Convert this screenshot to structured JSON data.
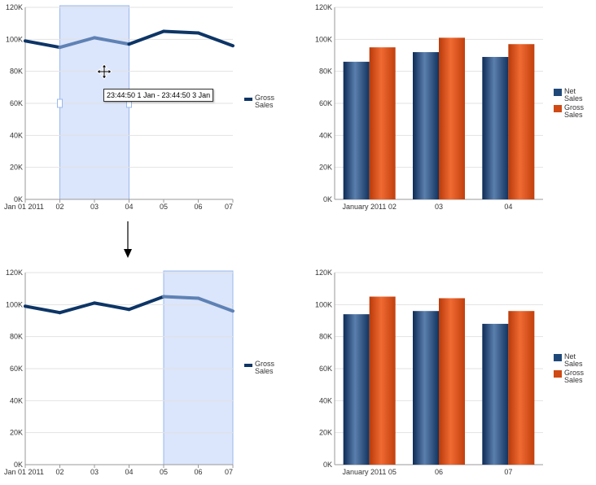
{
  "colors": {
    "line": "#0d3566",
    "line_selected": "#5f82b5",
    "net_sales": "#1f4878",
    "gross_sales": "#cf4a14",
    "selection_fill": "#dbe5fb",
    "selection_border": "#9ab8ef",
    "gridline": "#e2e2e2",
    "axis": "#9a9a9a"
  },
  "icons": {
    "move_cursor": "move-cursor-icon",
    "flow_arrow": "down-arrow-icon"
  },
  "before": {
    "line_chart": {
      "legend": "Gross Sales",
      "tooltip": "23:44:50 1 Jan - 23:44:50 3 Jan",
      "selection_range": [
        "Jan 01 2011",
        "04"
      ]
    },
    "bar_chart": {
      "legend_net": "Net Sales",
      "legend_gross": "Gross Sales"
    }
  },
  "after": {
    "line_chart": {
      "legend": "Gross Sales",
      "selection_range": [
        "05",
        "07"
      ]
    },
    "bar_chart": {
      "legend_net": "Net Sales",
      "legend_gross": "Gross Sales"
    }
  },
  "chart_data": [
    {
      "id": "line-before",
      "type": "line",
      "categories": [
        "Jan 01 2011",
        "02",
        "03",
        "04",
        "05",
        "06",
        "07"
      ],
      "series": [
        {
          "name": "Gross Sales",
          "values": [
            99000,
            95000,
            101000,
            97000,
            105000,
            104000,
            96000
          ]
        }
      ],
      "y_ticks": [
        "0K",
        "20K",
        "40K",
        "60K",
        "80K",
        "100K",
        "120K"
      ],
      "ylim": [
        0,
        120000
      ],
      "grid": true,
      "selected_range": [
        1,
        3
      ]
    },
    {
      "id": "bar-before",
      "type": "bar",
      "categories": [
        "January 2011 02",
        "03",
        "04"
      ],
      "series": [
        {
          "name": "Net Sales",
          "values": [
            86000,
            92000,
            89000
          ]
        },
        {
          "name": "Gross Sales",
          "values": [
            95000,
            101000,
            97000
          ]
        }
      ],
      "y_ticks": [
        "0K",
        "20K",
        "40K",
        "60K",
        "80K",
        "100K",
        "120K"
      ],
      "ylim": [
        0,
        120000
      ],
      "grid": true
    },
    {
      "id": "line-after",
      "type": "line",
      "categories": [
        "Jan 01 2011",
        "02",
        "03",
        "04",
        "05",
        "06",
        "07"
      ],
      "series": [
        {
          "name": "Gross Sales",
          "values": [
            99000,
            95000,
            101000,
            97000,
            105000,
            104000,
            96000
          ]
        }
      ],
      "y_ticks": [
        "0K",
        "20K",
        "40K",
        "60K",
        "80K",
        "100K",
        "120K"
      ],
      "ylim": [
        0,
        120000
      ],
      "grid": true,
      "selected_range": [
        4,
        6
      ]
    },
    {
      "id": "bar-after",
      "type": "bar",
      "categories": [
        "January 2011 05",
        "06",
        "07"
      ],
      "series": [
        {
          "name": "Net Sales",
          "values": [
            94000,
            96000,
            88000
          ]
        },
        {
          "name": "Gross Sales",
          "values": [
            105000,
            104000,
            96000
          ]
        }
      ],
      "y_ticks": [
        "0K",
        "20K",
        "40K",
        "60K",
        "80K",
        "100K",
        "120K"
      ],
      "ylim": [
        0,
        120000
      ],
      "grid": true
    }
  ]
}
